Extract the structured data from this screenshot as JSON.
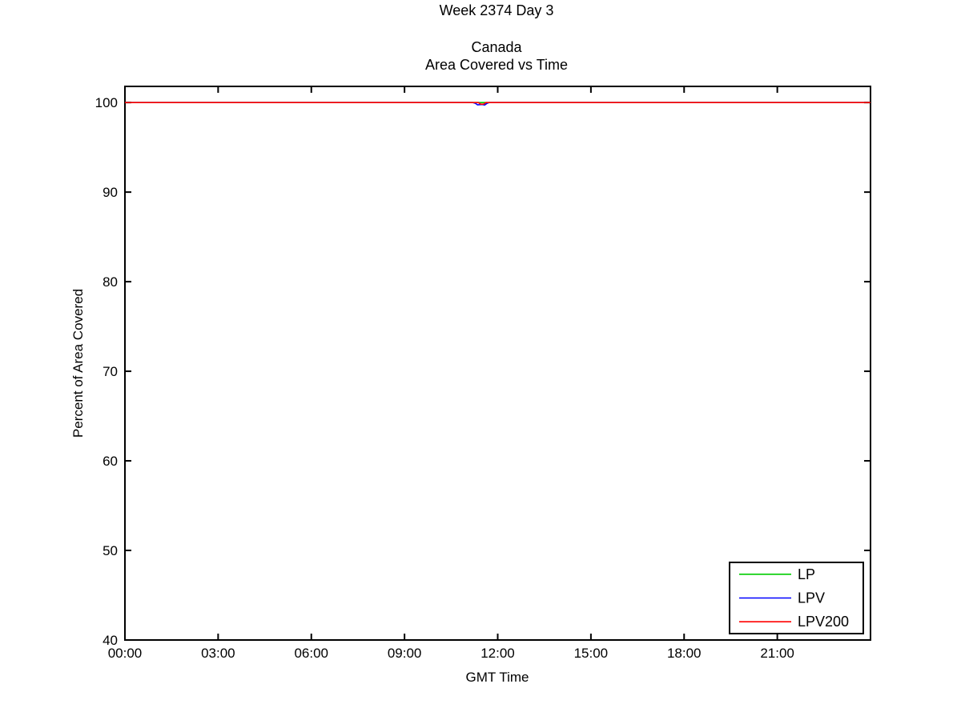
{
  "titles": {
    "line1": "Week 2374 Day 3",
    "line2": "Canada",
    "line3": "Area Covered vs Time"
  },
  "colors": {
    "axis": "#000000",
    "background": "#ffffff",
    "lp": "#00cc00",
    "lpv": "#0000ff",
    "lpv200": "#ff0000"
  },
  "chart_data": {
    "type": "line",
    "title": "Week 2374 Day 3",
    "subtitle": [
      "Canada",
      "Area Covered vs Time"
    ],
    "xlabel": "GMT Time",
    "ylabel": "Percent of Area Covered",
    "xlim_hours": [
      0,
      24
    ],
    "ylim": [
      40,
      101.8
    ],
    "grid": false,
    "legend_position": "lower right",
    "x_tick_hours": [
      0,
      3,
      6,
      9,
      12,
      15,
      18,
      21
    ],
    "x_tick_labels": [
      "00:00",
      "03:00",
      "06:00",
      "09:00",
      "12:00",
      "15:00",
      "18:00",
      "21:00"
    ],
    "y_ticks": [
      40,
      50,
      60,
      70,
      80,
      90,
      100
    ],
    "y_tick_labels": [
      "40",
      "50",
      "60",
      "70",
      "80",
      "90",
      "100"
    ],
    "series": [
      {
        "name": "LP",
        "color": "#00cc00",
        "points": [
          [
            0,
            100
          ],
          [
            24,
            100
          ]
        ]
      },
      {
        "name": "LPV",
        "color": "#0000ff",
        "points": [
          [
            0,
            100
          ],
          [
            11.2,
            100
          ],
          [
            11.28,
            99.92
          ],
          [
            11.35,
            99.75
          ],
          [
            11.5,
            99.78
          ],
          [
            11.58,
            99.72
          ],
          [
            11.65,
            99.9
          ],
          [
            11.72,
            100
          ],
          [
            24,
            100
          ]
        ]
      },
      {
        "name": "LPV200",
        "color": "#ff0000",
        "points": [
          [
            0,
            100
          ],
          [
            11.38,
            100
          ],
          [
            11.45,
            99.82
          ],
          [
            11.55,
            99.82
          ],
          [
            11.62,
            100
          ],
          [
            24,
            100
          ]
        ]
      }
    ]
  }
}
